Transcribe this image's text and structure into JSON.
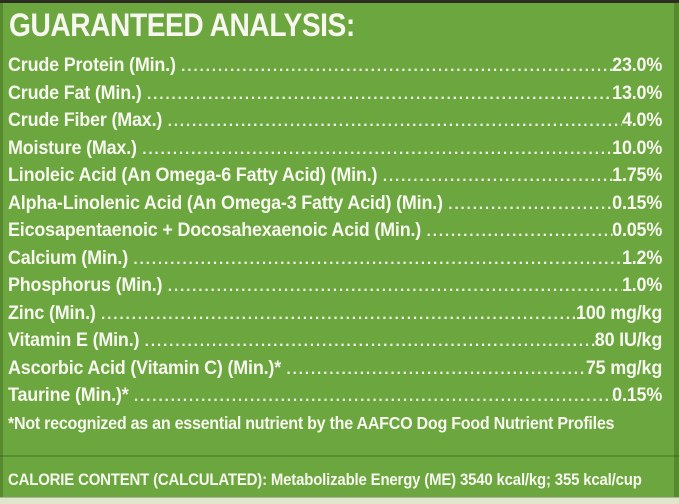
{
  "label": {
    "title": "GUARANTEED ANALYSIS:",
    "rows": [
      {
        "name": "Crude Protein (Min.)",
        "value": "23.0%"
      },
      {
        "name": "Crude Fat (Min.)",
        "value": "13.0%"
      },
      {
        "name": "Crude Fiber (Max.)",
        "value": "4.0%"
      },
      {
        "name": "Moisture (Max.)",
        "value": "10.0%"
      },
      {
        "name": "Linoleic Acid (An Omega-6 Fatty Acid) (Min.)",
        "value": "1.75%"
      },
      {
        "name": "Alpha-Linolenic Acid (An Omega-3 Fatty Acid) (Min.)",
        "value": "0.15%"
      },
      {
        "name": "Eicosapentaenoic + Docosahexaenoic Acid (Min.)",
        "value": "0.05%"
      },
      {
        "name": "Calcium (Min.)",
        "value": "1.2%"
      },
      {
        "name": "Phosphorus (Min.)",
        "value": "1.0%"
      },
      {
        "name": "Zinc (Min.)",
        "value": "100 mg/kg"
      },
      {
        "name": "Vitamin E (Min.)",
        "value": "80 IU/kg"
      },
      {
        "name": "Ascorbic Acid (Vitamin C) (Min.)*",
        "value": "75 mg/kg"
      },
      {
        "name": "Taurine (Min.)*",
        "value": "0.15%"
      }
    ],
    "leader_dots": "........................................................................................................................................................................................................",
    "footnote": "*Not recognized as an essential nutrient by the AAFCO Dog Food Nutrient Profiles",
    "calorie_line": "CALORIE CONTENT (CALCULATED): Metabolizable Energy (ME) 3540 kcal/kg; 355 kcal/cup"
  },
  "colors": {
    "background": "#6ba63e",
    "edge": "#578a2e",
    "top_strip": "#2c2c23",
    "bottom_strip": "#e0e6cc",
    "text": "#f7f6ef"
  }
}
